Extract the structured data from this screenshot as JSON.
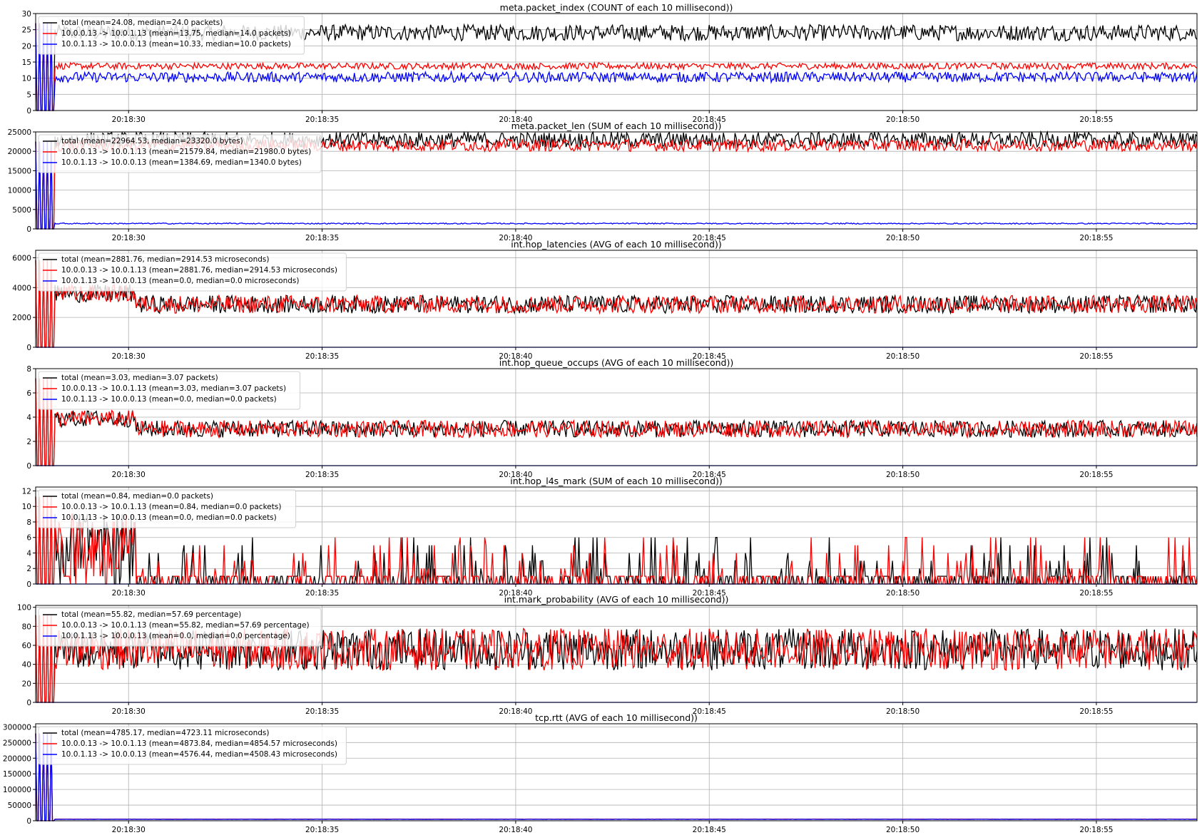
{
  "colors": {
    "total": "#000000",
    "forward": "#ff0000",
    "reverse": "#0000ff",
    "grid": "#b0b0b0"
  },
  "x_axis": {
    "tick_labels": [
      "20:18:30",
      "20:18:35",
      "20:18:40",
      "20:18:45",
      "20:18:50",
      "20:18:55"
    ],
    "tick_seconds": [
      30,
      35,
      40,
      45,
      50,
      55
    ],
    "xlim_seconds": [
      27.6,
      57.6
    ]
  },
  "chart_data": [
    {
      "type": "line",
      "title": "meta.packet_index (COUNT of each 10 millisecond))",
      "ylim": [
        0,
        30
      ],
      "yticks": [
        0,
        5,
        10,
        15,
        20,
        25,
        30
      ],
      "ytick_labels": [
        "0",
        "5",
        "10",
        "15",
        "20",
        "25",
        "30"
      ],
      "series": [
        {
          "name": "total (mean=24.08, median=24.0 packets)",
          "color": "#000000",
          "mean": 24.08,
          "median": 24.0,
          "noise": 2.5
        },
        {
          "name": "10.0.0.13 -> 10.0.1.13 (mean=13.75, median=14.0 packets)",
          "color": "#ff0000",
          "mean": 13.75,
          "median": 14.0,
          "noise": 1.0
        },
        {
          "name": "10.0.1.13 -> 10.0.0.13 (mean=10.33, median=10.0 packets)",
          "color": "#0000ff",
          "mean": 10.33,
          "median": 10.0,
          "noise": 1.6
        }
      ]
    },
    {
      "type": "line",
      "title": "meta.packet_len (SUM of each 10 millisecond))",
      "ylim": [
        0,
        25000
      ],
      "yticks": [
        0,
        5000,
        10000,
        15000,
        20000,
        25000
      ],
      "ytick_labels": [
        "0",
        "5000",
        "10000",
        "15000",
        "20000",
        "25000"
      ],
      "series": [
        {
          "name": "total (mean=22964.53, median=23320.0 bytes)",
          "color": "#000000",
          "mean": 22964.53,
          "median": 23320.0,
          "noise": 2000
        },
        {
          "name": "10.0.0.13 -> 10.0.1.13 (mean=21579.84, median=21980.0 bytes)",
          "color": "#ff0000",
          "mean": 21579.84,
          "median": 21980.0,
          "noise": 1600
        },
        {
          "name": "10.0.1.13 -> 10.0.0.13 (mean=1384.69, median=1340.0 bytes)",
          "color": "#0000ff",
          "mean": 1384.69,
          "median": 1340.0,
          "noise": 150
        }
      ]
    },
    {
      "type": "line",
      "title": "int.hop_latencies (AVG of each 10 millisecond))",
      "ylim": [
        0,
        6500
      ],
      "yticks": [
        0,
        2000,
        4000,
        6000
      ],
      "ytick_labels": [
        "0",
        "2000",
        "4000",
        "6000"
      ],
      "series": [
        {
          "name": "total (mean=2881.76, median=2914.53 microseconds)",
          "color": "#000000",
          "mean": 2881.76,
          "median": 2914.53,
          "noise": 600
        },
        {
          "name": "10.0.0.13 -> 10.0.1.13 (mean=2881.76, median=2914.53 microseconds)",
          "color": "#ff0000",
          "mean": 2881.76,
          "median": 2914.53,
          "noise": 600
        },
        {
          "name": "10.0.1.13 -> 10.0.0.13 (mean=0.0, median=0.0 microseconds)",
          "color": "#0000ff",
          "mean": 0.0,
          "median": 0.0,
          "noise": 0
        }
      ]
    },
    {
      "type": "line",
      "title": "int.hop_queue_occups (AVG of each 10 millisecond))",
      "ylim": [
        0,
        8
      ],
      "yticks": [
        0,
        2,
        4,
        6,
        8
      ],
      "ytick_labels": [
        "0",
        "2",
        "4",
        "6",
        "8"
      ],
      "series": [
        {
          "name": "total (mean=3.03, median=3.07 packets)",
          "color": "#000000",
          "mean": 3.03,
          "median": 3.07,
          "noise": 0.7
        },
        {
          "name": "10.0.0.13 -> 10.0.1.13 (mean=3.03, median=3.07 packets)",
          "color": "#ff0000",
          "mean": 3.03,
          "median": 3.07,
          "noise": 0.7
        },
        {
          "name": "10.0.1.13 -> 10.0.0.13 (mean=0.0, median=0.0 packets)",
          "color": "#0000ff",
          "mean": 0.0,
          "median": 0.0,
          "noise": 0
        }
      ]
    },
    {
      "type": "line",
      "title": "int.hop_l4s_mark (SUM of each 10 millisecond))",
      "ylim": [
        0,
        12.5
      ],
      "yticks": [
        0,
        2,
        4,
        6,
        8,
        10,
        12
      ],
      "ytick_labels": [
        "0",
        "2",
        "4",
        "6",
        "8",
        "10",
        "12"
      ],
      "series": [
        {
          "name": "total (mean=0.84, median=0.0 packets)",
          "color": "#000000",
          "mean": 0.84,
          "median": 0.0,
          "noise": 1.2
        },
        {
          "name": "10.0.0.13 -> 10.0.1.13 (mean=0.84, median=0.0 packets)",
          "color": "#ff0000",
          "mean": 0.84,
          "median": 0.0,
          "noise": 1.2
        },
        {
          "name": "10.0.1.13 -> 10.0.0.13 (mean=0.0, median=0.0 packets)",
          "color": "#0000ff",
          "mean": 0.0,
          "median": 0.0,
          "noise": 0
        }
      ]
    },
    {
      "type": "line",
      "title": "int.mark_probability (AVG of each 10 millisecond))",
      "ylim": [
        0,
        102
      ],
      "yticks": [
        0,
        20,
        40,
        60,
        80,
        100
      ],
      "ytick_labels": [
        "0",
        "20",
        "40",
        "60",
        "80",
        "100"
      ],
      "series": [
        {
          "name": "total (mean=55.82, median=57.69 percentage)",
          "color": "#000000",
          "mean": 55.82,
          "median": 57.69,
          "noise": 22
        },
        {
          "name": "10.0.0.13 -> 10.0.1.13 (mean=55.82, median=57.69 percentage)",
          "color": "#ff0000",
          "mean": 55.82,
          "median": 57.69,
          "noise": 22
        },
        {
          "name": "10.0.1.13 -> 10.0.0.13 (mean=0.0, median=0.0 percentage)",
          "color": "#0000ff",
          "mean": 0.0,
          "median": 0.0,
          "noise": 0
        }
      ]
    },
    {
      "type": "line",
      "title": "tcp.rtt (AVG of each 10 millisecond))",
      "ylim": [
        0,
        310000
      ],
      "yticks": [
        0,
        50000,
        100000,
        150000,
        200000,
        250000,
        300000
      ],
      "ytick_labels": [
        "0",
        "50000",
        "100000",
        "150000",
        "200000",
        "250000",
        "300000"
      ],
      "series": [
        {
          "name": "total (mean=4785.17, median=4723.11 microseconds)",
          "color": "#000000",
          "mean": 4785.17,
          "median": 4723.11,
          "noise": 300
        },
        {
          "name": "10.0.0.13 -> 10.0.1.13 (mean=4873.84, median=4854.57 microseconds)",
          "color": "#ff0000",
          "mean": 4873.84,
          "median": 4854.57,
          "noise": 300
        },
        {
          "name": "10.0.1.13 -> 10.0.0.13 (mean=4576.44, median=4508.43 microseconds)",
          "color": "#0000ff",
          "mean": 4576.44,
          "median": 4508.43,
          "noise": 300
        }
      ]
    }
  ]
}
